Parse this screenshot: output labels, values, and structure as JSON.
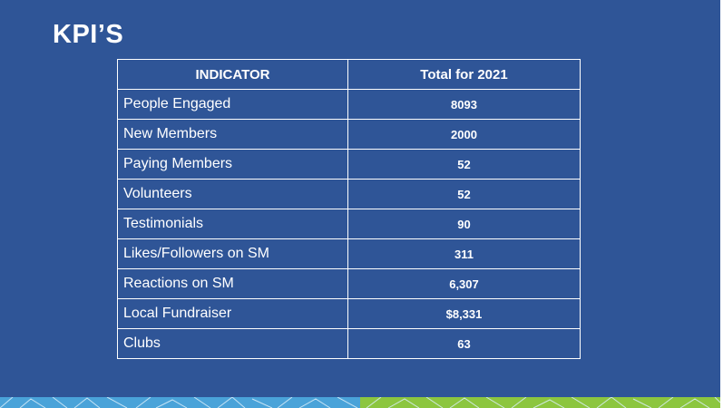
{
  "slide": {
    "title": "KPI’S"
  },
  "table": {
    "headers": [
      "INDICATOR",
      "Total for 2021"
    ],
    "rows": [
      {
        "indicator": "People Engaged",
        "value": "8093"
      },
      {
        "indicator": "New Members",
        "value": "2000"
      },
      {
        "indicator": "Paying Members",
        "value": "52"
      },
      {
        "indicator": "Volunteers",
        "value": "52"
      },
      {
        "indicator": "Testimonials",
        "value": "90"
      },
      {
        "indicator": "Likes/Followers on SM",
        "value": "311"
      },
      {
        "indicator": "Reactions on SM",
        "value": "6,307"
      },
      {
        "indicator": "Local Fundraiser",
        "value": "$8,331"
      },
      {
        "indicator": "Clubs",
        "value": "63"
      }
    ]
  },
  "colors": {
    "background": "#2f5597",
    "text": "#ffffff",
    "footer_blue": "#4aa3d9",
    "footer_green": "#8cc63f"
  },
  "decor": {
    "footer_pattern": "geometric-line-pattern"
  }
}
